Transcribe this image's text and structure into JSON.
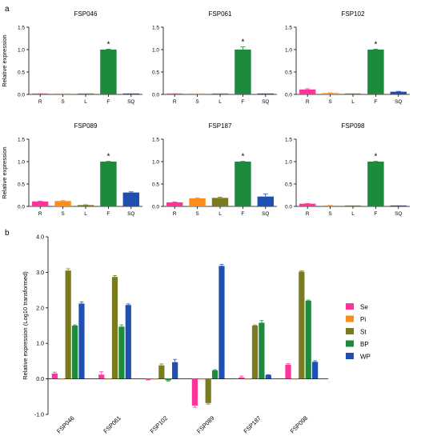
{
  "panels": {
    "a": {
      "label": "a"
    },
    "b": {
      "label": "b"
    }
  },
  "colors": {
    "R": "#ff3399",
    "S": "#ff8c1a",
    "L": "#7a7a1f",
    "F": "#1e8a3c",
    "SQ": "#1f4fb0",
    "Se": "#ff3399",
    "Pi": "#ff8c1a",
    "St": "#7a7a1f",
    "BP": "#1e8a3c",
    "WP": "#1f4fb0"
  },
  "chart_data": [
    {
      "type": "bar",
      "title": "FSP046",
      "ylabel": "Relative expression",
      "categories": [
        "R",
        "S",
        "L",
        "F",
        "SQ"
      ],
      "values": [
        0.01,
        0.0,
        0.0,
        1.0,
        0.0
      ],
      "errors": [
        0.005,
        0.0,
        0.0,
        0.01,
        0.0
      ],
      "ylim": [
        0,
        1.5
      ],
      "yticks": [
        "0.0",
        "0.5",
        "1.0",
        "1.5"
      ],
      "annotations": [
        {
          "category": "F",
          "text": "*"
        }
      ]
    },
    {
      "type": "bar",
      "title": "FSP061",
      "ylabel": "",
      "categories": [
        "R",
        "S",
        "L",
        "F",
        "SQ"
      ],
      "values": [
        0.01,
        0.0,
        0.0,
        1.0,
        0.0
      ],
      "errors": [
        0.005,
        0.0,
        0.0,
        0.06,
        0.0
      ],
      "ylim": [
        0,
        1.5
      ],
      "yticks": [
        "0.0",
        "0.5",
        "1.0",
        "1.5"
      ],
      "annotations": [
        {
          "category": "F",
          "text": "*"
        }
      ]
    },
    {
      "type": "bar",
      "title": "FSP102",
      "ylabel": "",
      "categories": [
        "R",
        "S",
        "L",
        "F",
        "SQ"
      ],
      "values": [
        0.11,
        0.03,
        0.01,
        1.0,
        0.06
      ],
      "errors": [
        0.015,
        0.005,
        0.003,
        0.01,
        0.008
      ],
      "ylim": [
        0,
        1.5
      ],
      "yticks": [
        "0.0",
        "0.5",
        "1.0",
        "1.5"
      ],
      "annotations": [
        {
          "category": "F",
          "text": "*"
        }
      ]
    },
    {
      "type": "bar",
      "title": "FSP089",
      "ylabel": "Relative expression",
      "categories": [
        "R",
        "S",
        "L",
        "F",
        "SQ"
      ],
      "values": [
        0.11,
        0.12,
        0.03,
        1.0,
        0.31
      ],
      "errors": [
        0.01,
        0.01,
        0.005,
        0.005,
        0.015
      ],
      "ylim": [
        0,
        1.5
      ],
      "yticks": [
        "0.0",
        "0.5",
        "1.0",
        "1.5"
      ],
      "annotations": [
        {
          "category": "F",
          "text": "*"
        }
      ]
    },
    {
      "type": "bar",
      "title": "FSP187",
      "ylabel": "",
      "categories": [
        "R",
        "S",
        "L",
        "F",
        "SQ"
      ],
      "values": [
        0.09,
        0.18,
        0.19,
        1.0,
        0.22
      ],
      "errors": [
        0.01,
        0.01,
        0.015,
        0.005,
        0.06
      ],
      "ylim": [
        0,
        1.5
      ],
      "yticks": [
        "0.0",
        "0.5",
        "1.0",
        "1.5"
      ],
      "annotations": [
        {
          "category": "F",
          "text": "*"
        }
      ]
    },
    {
      "type": "bar",
      "title": "FSP098",
      "ylabel": "",
      "categories": [
        "R",
        "S",
        "L",
        "F",
        "SQ"
      ],
      "values": [
        0.06,
        0.02,
        0.0,
        1.0,
        0.01
      ],
      "errors": [
        0.005,
        0.003,
        0.0,
        0.005,
        0.002
      ],
      "ylim": [
        0,
        1.5
      ],
      "yticks": [
        "0.0",
        "0.5",
        "1.0",
        "1.5"
      ],
      "annotations": [
        {
          "category": "F",
          "text": "*"
        }
      ]
    },
    {
      "type": "bar",
      "title": "",
      "ylabel": "Relative expression (Log10 transformed)",
      "categories": [
        "FSP046",
        "FSP061",
        "FSP102",
        "FSP089",
        "FSP187",
        "FSP098"
      ],
      "ylim": [
        -1.0,
        4.0
      ],
      "yticks": [
        "-1.0",
        "0.0",
        "1.0",
        "2.0",
        "3.0",
        "4.0"
      ],
      "legend": "right",
      "series": [
        {
          "name": "Se",
          "values": [
            0.15,
            0.12,
            -0.02,
            -0.75,
            0.04,
            0.4
          ],
          "errors": [
            0.04,
            0.08,
            0.01,
            0.05,
            0.04,
            0.03
          ]
        },
        {
          "name": "Pi",
          "values": [
            0.0,
            0.0,
            0.0,
            0.0,
            0.0,
            0.0
          ],
          "errors": [
            0.0,
            0.0,
            0.0,
            0.0,
            0.0,
            0.0
          ]
        },
        {
          "name": "St",
          "values": [
            3.05,
            2.87,
            0.38,
            -0.68,
            1.5,
            3.02
          ],
          "errors": [
            0.05,
            0.04,
            0.04,
            0.03,
            0.02,
            0.02
          ]
        },
        {
          "name": "BP",
          "values": [
            1.5,
            1.47,
            -0.04,
            0.24,
            1.58,
            2.2
          ],
          "errors": [
            0.02,
            0.05,
            0.02,
            0.02,
            0.06,
            0.02
          ]
        },
        {
          "name": "WP",
          "values": [
            2.12,
            2.08,
            0.47,
            3.18,
            0.11,
            0.48
          ],
          "errors": [
            0.05,
            0.03,
            0.08,
            0.04,
            0.01,
            0.03
          ]
        }
      ]
    }
  ]
}
